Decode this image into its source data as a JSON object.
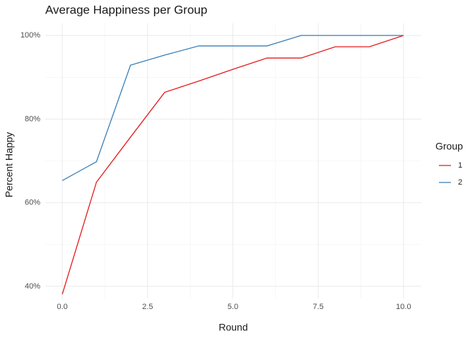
{
  "chart_data": {
    "type": "line",
    "title": "Average Happiness per Group",
    "x_label": "Round",
    "y_label": "Percent Happy",
    "x": [
      0,
      1,
      2,
      3,
      4,
      5,
      6,
      7,
      8,
      9,
      10
    ],
    "series": [
      {
        "name": "1",
        "color": "#e41a1c",
        "values": [
          38.1,
          64.9,
          75.7,
          86.4,
          89.1,
          91.9,
          94.6,
          94.6,
          97.3,
          97.3,
          100
        ]
      },
      {
        "name": "2",
        "color": "#377eb8",
        "values": [
          65.3,
          69.8,
          92.9,
          95.3,
          97.5,
          97.5,
          97.5,
          100,
          100,
          100,
          100
        ]
      }
    ],
    "legend_title": "Group",
    "legend_position": "right",
    "xlim": [
      -0.5,
      10.52
    ],
    "xticks": [
      {
        "value": 0,
        "label": "0.0"
      },
      2.5,
      {
        "value": 5,
        "label": "5.0"
      },
      7.5,
      {
        "value": 10,
        "label": "10.0"
      }
    ],
    "x_minor_ticks": [
      1.25,
      3.75,
      6.25,
      8.75
    ],
    "ylim": [
      37.1,
      102.9
    ],
    "yticks": [
      {
        "value": 40,
        "label": "40%"
      },
      {
        "value": 60,
        "label": "60%"
      },
      {
        "value": 80,
        "label": "80%"
      },
      {
        "value": 100,
        "label": "100%"
      }
    ],
    "y_minor_ticks": [
      50,
      70,
      90
    ],
    "grid": true
  }
}
